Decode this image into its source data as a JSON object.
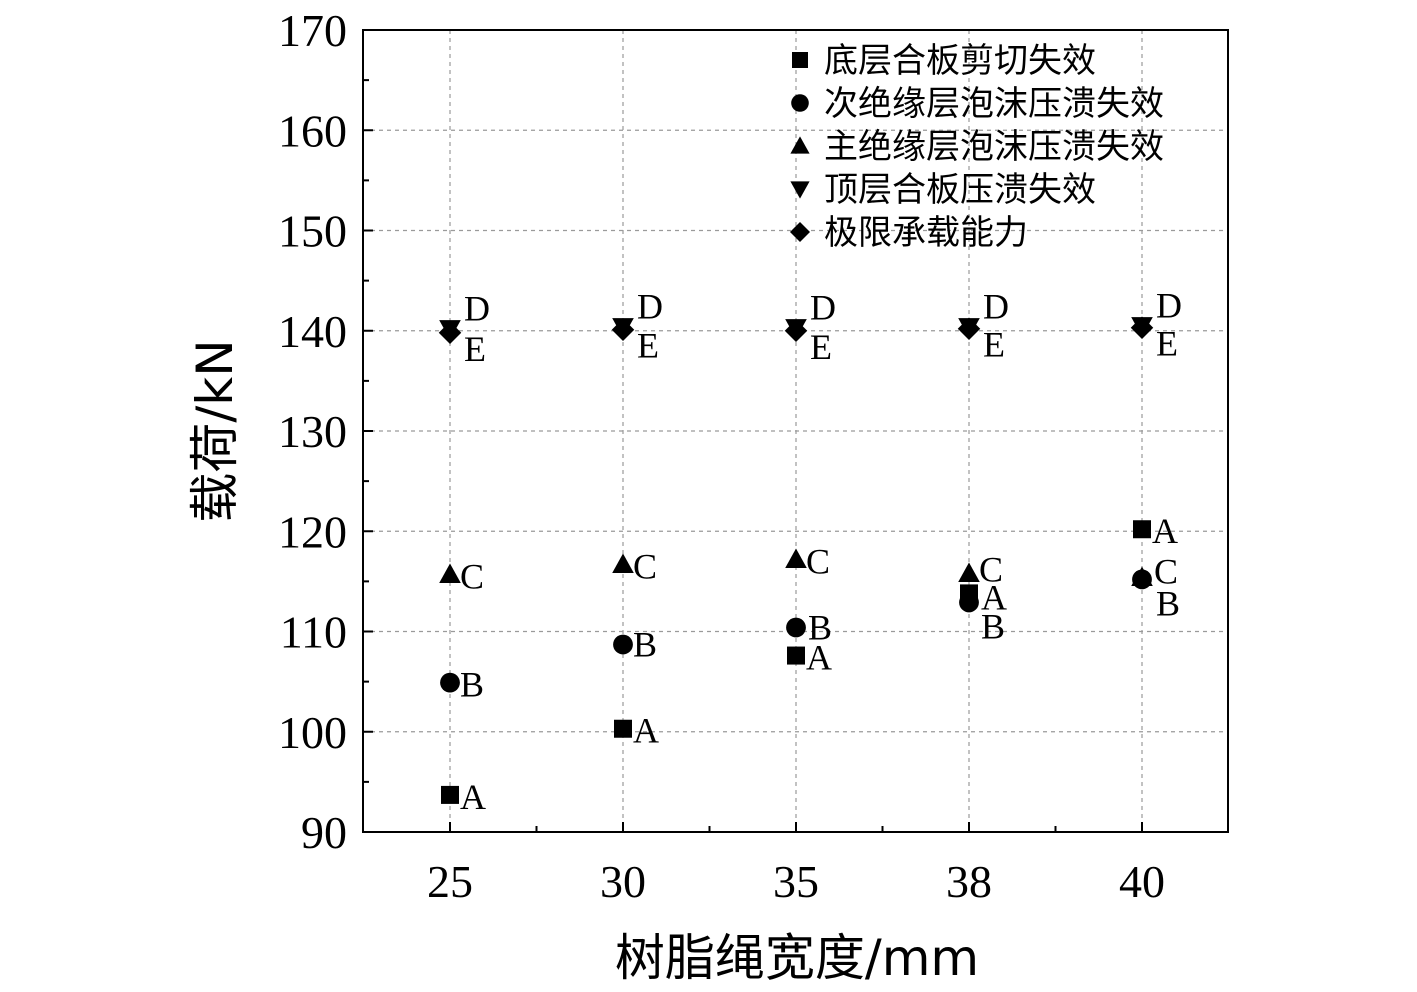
{
  "chart_data": {
    "type": "scatter",
    "title": "",
    "xlabel": "树脂绳宽度/mm",
    "ylabel": "载荷/kN",
    "categories": [
      "25",
      "30",
      "35",
      "38",
      "40"
    ],
    "ylim": [
      90,
      170
    ],
    "yticks": [
      90,
      100,
      110,
      120,
      130,
      140,
      150,
      160,
      170
    ],
    "grid": true,
    "legend_position": "top-right",
    "series": [
      {
        "name": "底层合板剪切失效",
        "marker": "square",
        "label": "A",
        "values": [
          93.7,
          100.3,
          107.6,
          113.8,
          120.2
        ]
      },
      {
        "name": "次绝缘层泡沫压溃失效",
        "marker": "circle",
        "label": "B",
        "values": [
          104.9,
          108.7,
          110.4,
          112.9,
          115.2
        ]
      },
      {
        "name": "主绝缘层泡沫压溃失效",
        "marker": "triangle-up",
        "label": "C",
        "values": [
          115.7,
          116.7,
          117.2,
          115.8,
          115.4
        ]
      },
      {
        "name": "顶层合板压溃失效",
        "marker": "triangle-down",
        "label": "D",
        "values": [
          140.2,
          140.4,
          140.3,
          140.4,
          140.5
        ]
      },
      {
        "name": "极限承载能力",
        "marker": "diamond",
        "label": "E",
        "values": [
          139.8,
          140.1,
          140.0,
          140.2,
          140.3
        ]
      }
    ],
    "colors": {
      "marker": "#000000",
      "grid": "#9a9a9a",
      "axis": "#000000"
    }
  }
}
